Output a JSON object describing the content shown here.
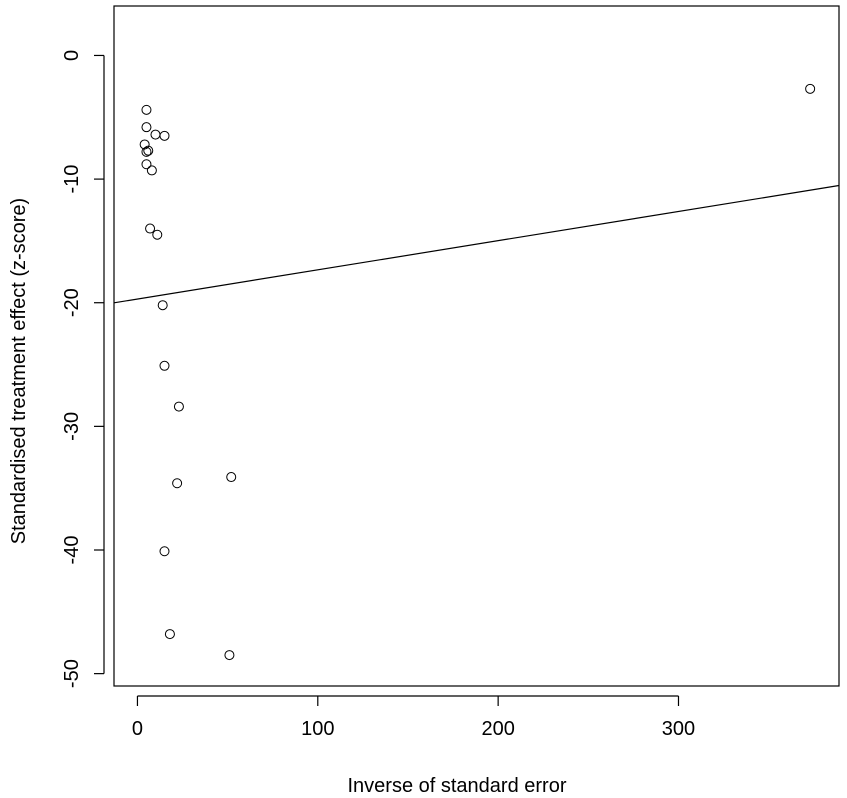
{
  "chart_data": {
    "type": "scatter",
    "title": "",
    "xlabel": "Inverse of standard error",
    "ylabel": "Standardised treatment effect (z-score)",
    "xlim": [
      -13,
      389
    ],
    "ylim": [
      -51,
      4
    ],
    "x_ticks": [
      0,
      100,
      200,
      300
    ],
    "y_ticks": [
      0,
      -10,
      -20,
      -30,
      -40,
      -50
    ],
    "grid": false,
    "points": [
      {
        "x": 373,
        "y": -2.7
      },
      {
        "x": 5,
        "y": -4.4
      },
      {
        "x": 5,
        "y": -5.8
      },
      {
        "x": 10,
        "y": -6.4
      },
      {
        "x": 15,
        "y": -6.5
      },
      {
        "x": 4,
        "y": -7.2
      },
      {
        "x": 6,
        "y": -7.7
      },
      {
        "x": 5,
        "y": -7.8
      },
      {
        "x": 5,
        "y": -8.8
      },
      {
        "x": 8,
        "y": -9.3
      },
      {
        "x": 7,
        "y": -14.0
      },
      {
        "x": 11,
        "y": -14.5
      },
      {
        "x": 14,
        "y": -20.2
      },
      {
        "x": 15,
        "y": -25.1
      },
      {
        "x": 23,
        "y": -28.4
      },
      {
        "x": 52,
        "y": -34.1
      },
      {
        "x": 22,
        "y": -34.6
      },
      {
        "x": 15,
        "y": -40.1
      },
      {
        "x": 18,
        "y": -46.8
      },
      {
        "x": 51,
        "y": -48.5
      }
    ],
    "regression_line": {
      "intercept": -19.7,
      "slope": 0.0236
    }
  }
}
